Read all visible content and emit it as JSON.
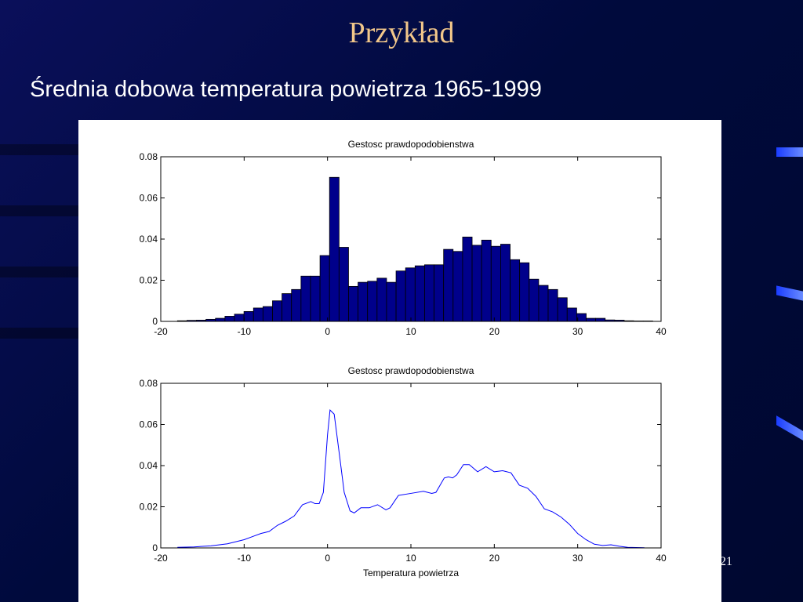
{
  "slide": {
    "title": "Przykład",
    "subtitle": "Średnia dobowa temperatura powietrza 1965-1999",
    "page_number": "21"
  },
  "chart_data": [
    {
      "type": "histogram",
      "title": "Gestosc prawdopodobienstwa",
      "color": "#00008b",
      "bins": [
        -18,
        -16.86,
        -15.72,
        -14.58,
        -13.44,
        -12.3,
        -11.16,
        -10.02,
        -8.88,
        -7.74,
        -6.6,
        -5.46,
        -4.32,
        -3.18,
        -2.04,
        -0.9,
        0.24,
        1.38,
        2.52,
        3.66,
        4.8,
        5.94,
        7.08,
        8.22,
        9.36,
        10.5,
        11.64,
        12.78,
        13.92,
        15.06,
        16.2,
        17.34,
        18.48,
        19.62,
        20.76,
        21.9,
        23.04,
        24.18,
        25.32,
        26.46,
        27.6,
        28.74,
        29.88,
        31.02,
        32.16,
        33.3,
        34.44,
        35.58,
        36.72,
        37.86,
        39
      ],
      "values": [
        0.0003,
        0.0005,
        0.0006,
        0.001,
        0.0015,
        0.0025,
        0.0035,
        0.0048,
        0.0065,
        0.0072,
        0.01,
        0.0135,
        0.0155,
        0.022,
        0.022,
        0.032,
        0.07,
        0.036,
        0.017,
        0.019,
        0.0195,
        0.021,
        0.019,
        0.0245,
        0.026,
        0.027,
        0.0275,
        0.0275,
        0.035,
        0.034,
        0.041,
        0.037,
        0.0395,
        0.0365,
        0.0375,
        0.03,
        0.0285,
        0.0205,
        0.0175,
        0.0155,
        0.0115,
        0.0065,
        0.0038,
        0.0015,
        0.0015,
        0.0007,
        0.0006,
        0.0003,
        0.0002,
        0.0002
      ],
      "xlim": [
        -20,
        40
      ],
      "ylim": [
        0,
        0.08
      ],
      "xticks": [
        -20,
        -10,
        0,
        10,
        20,
        30,
        40
      ],
      "yticks": [
        0,
        0.02,
        0.04,
        0.06,
        0.08
      ]
    },
    {
      "type": "line",
      "title": "Gestosc prawdopodobienstwa",
      "xlabel": "Temperatura powietrza",
      "color": "#0000ff",
      "x": [
        -18,
        -16,
        -14,
        -12,
        -10,
        -9,
        -8,
        -7,
        -6,
        -5,
        -4,
        -3,
        -2,
        -1.5,
        -1,
        -0.5,
        0,
        0.3,
        0.8,
        1.5,
        2,
        2.7,
        3.2,
        4,
        5,
        6,
        7,
        7.5,
        8.5,
        10,
        11.5,
        12.5,
        13,
        14,
        14.5,
        15,
        15.5,
        16.3,
        17,
        18,
        19,
        20,
        21,
        22,
        23,
        24,
        25,
        26,
        27,
        28,
        29,
        30,
        31,
        32,
        33,
        34,
        35,
        36,
        37,
        38
      ],
      "values": [
        0.0003,
        0.0005,
        0.001,
        0.002,
        0.004,
        0.0055,
        0.007,
        0.008,
        0.011,
        0.013,
        0.0155,
        0.021,
        0.0225,
        0.0215,
        0.0215,
        0.027,
        0.055,
        0.067,
        0.065,
        0.043,
        0.027,
        0.018,
        0.017,
        0.0195,
        0.0195,
        0.021,
        0.0185,
        0.0195,
        0.0255,
        0.0265,
        0.0275,
        0.0265,
        0.027,
        0.034,
        0.0345,
        0.034,
        0.0355,
        0.0405,
        0.0405,
        0.037,
        0.0395,
        0.037,
        0.0375,
        0.0365,
        0.0305,
        0.029,
        0.025,
        0.019,
        0.0175,
        0.015,
        0.0115,
        0.007,
        0.004,
        0.0018,
        0.0012,
        0.0015,
        0.0008,
        0.0003,
        0.0002,
        0.0001
      ],
      "xlim": [
        -20,
        40
      ],
      "ylim": [
        0,
        0.08
      ],
      "xticks": [
        -20,
        -10,
        0,
        10,
        20,
        30,
        40
      ],
      "yticks": [
        0,
        0.02,
        0.04,
        0.06,
        0.08
      ]
    }
  ]
}
